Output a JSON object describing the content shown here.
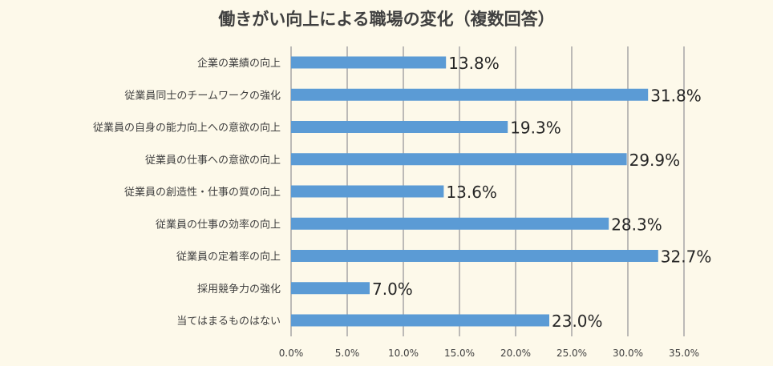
{
  "chart_data": {
    "type": "bar",
    "orientation": "horizontal",
    "title": "働きがい向上による職場の変化（複数回答）",
    "categories": [
      "企業の業績の向上",
      "従業員同士のチームワークの強化",
      "従業員の自身の能力向上への意欲の向上",
      "従業員の仕事への意欲の向上",
      "従業員の創造性・仕事の質の向上",
      "従業員の仕事の効率の向上",
      "従業員の定着率の向上",
      "採用競争力の強化",
      "当てはまるものはない"
    ],
    "values": [
      13.8,
      31.8,
      19.3,
      29.9,
      13.6,
      28.3,
      32.7,
      7.0,
      23.0
    ],
    "data_labels": [
      "13.8%",
      "31.8%",
      "19.3%",
      "29.9%",
      "13.6%",
      "28.3%",
      "32.7%",
      "7.0%",
      "23.0%"
    ],
    "xlim": [
      0,
      35
    ],
    "x_ticks": [
      "0.0%",
      "5.0%",
      "10.0%",
      "15.0%",
      "20.0%",
      "25.0%",
      "30.0%",
      "35.0%"
    ],
    "grid": "vertical",
    "legend": "none",
    "bar_color": "#5b9bd5"
  }
}
